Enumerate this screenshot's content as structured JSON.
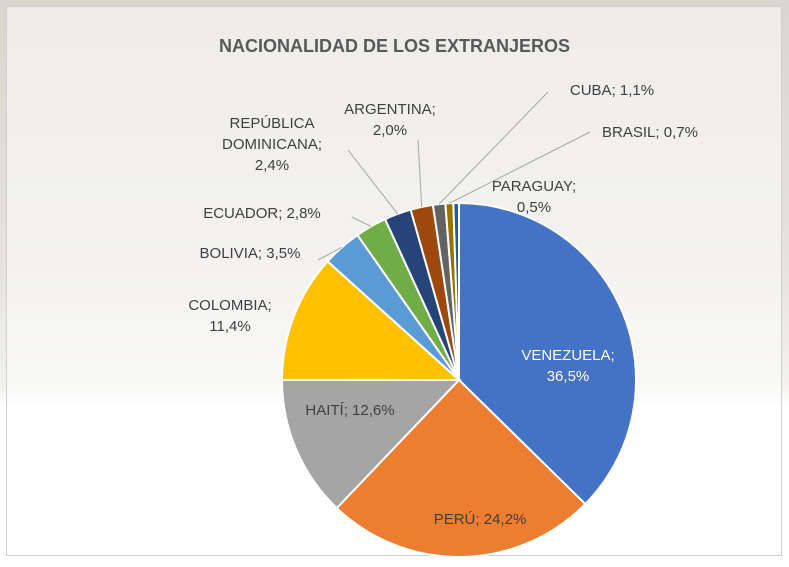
{
  "chart_data": {
    "type": "pie",
    "title": "NACIONALIDAD DE LOS EXTRANJEROS",
    "values": [
      36.5,
      24.2,
      12.6,
      11.4,
      3.5,
      2.8,
      2.4,
      2.0,
      1.1,
      0.7,
      0.5
    ],
    "value_labels": [
      "VENEZUELA; 36,5%",
      "PERÚ; 24,2%",
      "HAITÍ; 12,6%",
      "COLOMBIA; 11,4%",
      "BOLIVIA; 3,5%",
      "ECUADOR; 2,8%",
      "REPÚBLICA DOMINICANA; 2,4%",
      "ARGENTINA; 2,0%",
      "CUBA; 1,1%",
      "BRASIL; 0,7%",
      "PARAGUAY; 0,5%"
    ],
    "colors": [
      "#4472c4",
      "#ed7d31",
      "#a5a5a5",
      "#ffc000",
      "#5b9bd5",
      "#70ad47",
      "#264478",
      "#9e480e",
      "#636363",
      "#997300",
      "#255e91"
    ]
  }
}
